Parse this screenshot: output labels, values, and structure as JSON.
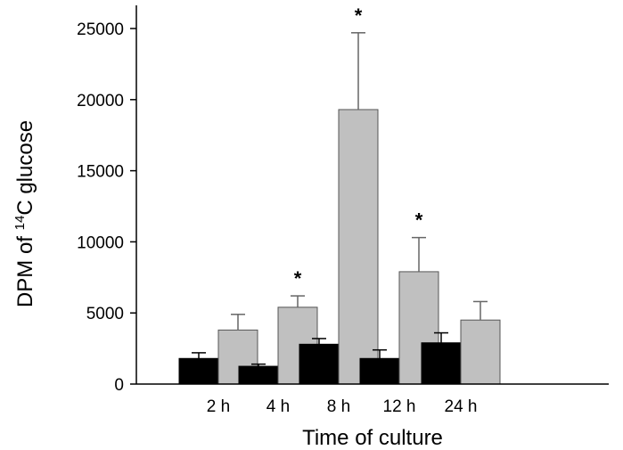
{
  "chart_data": {
    "type": "bar",
    "title": "",
    "xlabel": "Time of culture",
    "ylabel_prefix": "DPM of ",
    "ylabel_sup": "14",
    "ylabel_suffix": "C glucose",
    "categories": [
      "2 h",
      "4 h",
      "8 h",
      "12 h",
      "24 h"
    ],
    "ylim": [
      0,
      25000
    ],
    "yticks": [
      0,
      5000,
      10000,
      15000,
      20000,
      25000
    ],
    "grid": false,
    "legend": "none",
    "series": [
      {
        "color": "#000000",
        "values": [
          1800,
          1250,
          2800,
          1800,
          2900
        ],
        "errors": [
          400,
          150,
          400,
          600,
          700
        ]
      },
      {
        "color": "#c0c0c0",
        "values": [
          3800,
          5400,
          19300,
          7900,
          4500
        ],
        "errors": [
          1100,
          800,
          5400,
          2400,
          1300
        ]
      }
    ],
    "significance": [
      null,
      "*",
      "*",
      "*",
      null
    ]
  }
}
